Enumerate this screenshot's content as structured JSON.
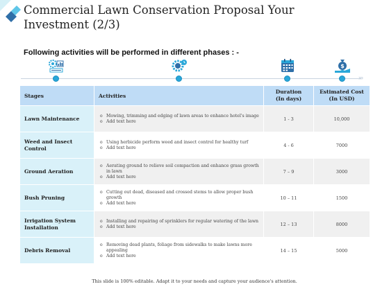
{
  "title": "Commercial Lawn Conservation Proposal Your Investment (2/3)",
  "subtitle": "Following activities will be performed in different phases : -",
  "timeline": {
    "icons": [
      "gear-chart-icon",
      "gear-clock-icon",
      "calendar-icon",
      "money-bag-hand-icon"
    ],
    "accent": "#29a7d9"
  },
  "table": {
    "headers": {
      "stages": "Stages",
      "activities": "Activities",
      "duration_line1": "Duration",
      "duration_line2": "(In days)",
      "cost_line1": "Estimated Cost",
      "cost_line2": "(In USD)"
    },
    "rows": [
      {
        "stage": "Lawn Maintenance",
        "activity": "Mowing, trimming and edging of lawn areas to enhance hotel's image",
        "add_text": "Add text here",
        "duration": "1 - 3",
        "cost": "10,000"
      },
      {
        "stage": "Weed and Insect Control",
        "activity": "Using herbicide perform weed and insect control for healthy turf",
        "add_text": "Add text here",
        "duration": "4 - 6",
        "cost": "7000"
      },
      {
        "stage": "Ground Aeration",
        "activity": "Aerating ground to relieve soil compaction and enhance grass growth in lawn",
        "add_text": "Add text here",
        "duration": "7 – 9",
        "cost": "3000"
      },
      {
        "stage": "Bush Pruning",
        "activity": "Cutting out dead, diseased and crossed stems to allow proper bush growth",
        "add_text": "Add text here",
        "duration": "10 – 11",
        "cost": "1500"
      },
      {
        "stage": "Irrigation System Installation",
        "activity": "Installing and repairing of sprinklers for regular watering of the lawn",
        "add_text": "Add text here",
        "duration": "12 – 13",
        "cost": "8000"
      },
      {
        "stage": "Debris Removal",
        "activity": "Removing dead plants, foliage from sidewalks to make lawns more appealing",
        "add_text": "Add text here",
        "duration": "14 – 15",
        "cost": "5000"
      }
    ]
  },
  "footer": "This slide is 100% editable. Adapt it to your needs and capture your audience's attention."
}
